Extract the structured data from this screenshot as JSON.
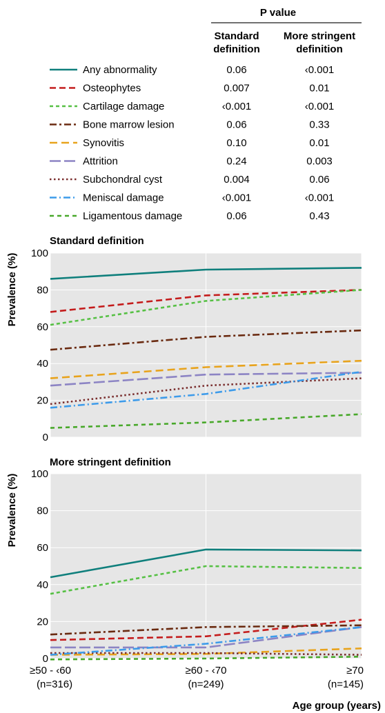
{
  "table": {
    "group_header": "P value",
    "col_standard": [
      "Standard",
      "definition"
    ],
    "col_stringent": [
      "More stringent",
      "definition"
    ]
  },
  "colors": {
    "plot_bg": "#e6e6e6",
    "grid": "#ffffff"
  },
  "series_styles": [
    {
      "color": "#0f7f7c",
      "dash": ""
    },
    {
      "color": "#c41c1c",
      "dash": "9,5"
    },
    {
      "color": "#56c044",
      "dash": "5,4"
    },
    {
      "color": "#6a2a10",
      "dash": "10,4,3,4"
    },
    {
      "color": "#e8a31c",
      "dash": "11,6"
    },
    {
      "color": "#8c84c4",
      "dash": "16,5"
    },
    {
      "color": "#7a2e2e",
      "dash": "2.5,3.5"
    },
    {
      "color": "#3d9bea",
      "dash": "10,4,2,4"
    },
    {
      "color": "#48a82a",
      "dash": "6,5"
    }
  ],
  "chart_data": [
    {
      "type": "line",
      "title": "Standard definition",
      "ylabel": "Prevalence (%)",
      "ylim": [
        0,
        100
      ],
      "yticks": [
        0,
        20,
        40,
        60,
        80,
        100
      ],
      "categories": [
        "≥50 - ‹60",
        "≥60 - ‹70",
        "≥70"
      ],
      "series": [
        {
          "name": "Any abnormality",
          "values": [
            86,
            91,
            92
          ],
          "p_value": "0.06"
        },
        {
          "name": "Osteophytes",
          "values": [
            68,
            77,
            80
          ],
          "p_value": "0.007"
        },
        {
          "name": "Cartilage damage",
          "values": [
            61,
            74,
            80
          ],
          "p_value": "‹0.001"
        },
        {
          "name": "Bone marrow lesion",
          "values": [
            47.5,
            54.5,
            58
          ],
          "p_value": "0.06"
        },
        {
          "name": "Synovitis",
          "values": [
            32,
            38,
            41.5
          ],
          "p_value": "0.10"
        },
        {
          "name": "Attrition",
          "values": [
            28,
            34,
            35
          ],
          "p_value": "0.24"
        },
        {
          "name": "Subchondral cyst",
          "values": [
            18,
            28,
            32
          ],
          "p_value": "0.004"
        },
        {
          "name": "Meniscal damage",
          "values": [
            16,
            23.5,
            35.5
          ],
          "p_value": "‹0.001"
        },
        {
          "name": "Ligamentous damage",
          "values": [
            5,
            8,
            12.5
          ],
          "p_value": "0.06"
        }
      ]
    },
    {
      "type": "line",
      "title": "More stringent definition",
      "ylabel": "Prevalence (%)",
      "ylim": [
        0,
        100
      ],
      "yticks": [
        0,
        20,
        40,
        60,
        80,
        100
      ],
      "categories": [
        "≥50 - ‹60",
        "≥60 - ‹70",
        "≥70"
      ],
      "category_n": [
        "(n=316)",
        "(n=249)",
        "(n=145)"
      ],
      "xlabel": "Age group (years)",
      "series": [
        {
          "name": "Any abnormality",
          "values": [
            44,
            59,
            58.5
          ],
          "p_value": "‹0.001"
        },
        {
          "name": "Osteophytes",
          "values": [
            10,
            12,
            21
          ],
          "p_value": "0.01"
        },
        {
          "name": "Cartilage damage",
          "values": [
            35,
            50,
            49
          ],
          "p_value": "‹0.001"
        },
        {
          "name": "Bone marrow lesion",
          "values": [
            13,
            17,
            18
          ],
          "p_value": "0.33"
        },
        {
          "name": "Synovitis",
          "values": [
            2,
            2.5,
            5.5
          ],
          "p_value": "0.01"
        },
        {
          "name": "Attrition",
          "values": [
            6,
            6,
            17
          ],
          "p_value": "0.003"
        },
        {
          "name": "Subchondral cyst",
          "values": [
            3,
            3,
            2
          ],
          "p_value": "0.06"
        },
        {
          "name": "Meniscal damage",
          "values": [
            2,
            8,
            17
          ],
          "p_value": "‹0.001"
        },
        {
          "name": "Ligamentous damage",
          "values": [
            -0.5,
            0,
            1
          ],
          "p_value": "0.43"
        }
      ]
    }
  ]
}
